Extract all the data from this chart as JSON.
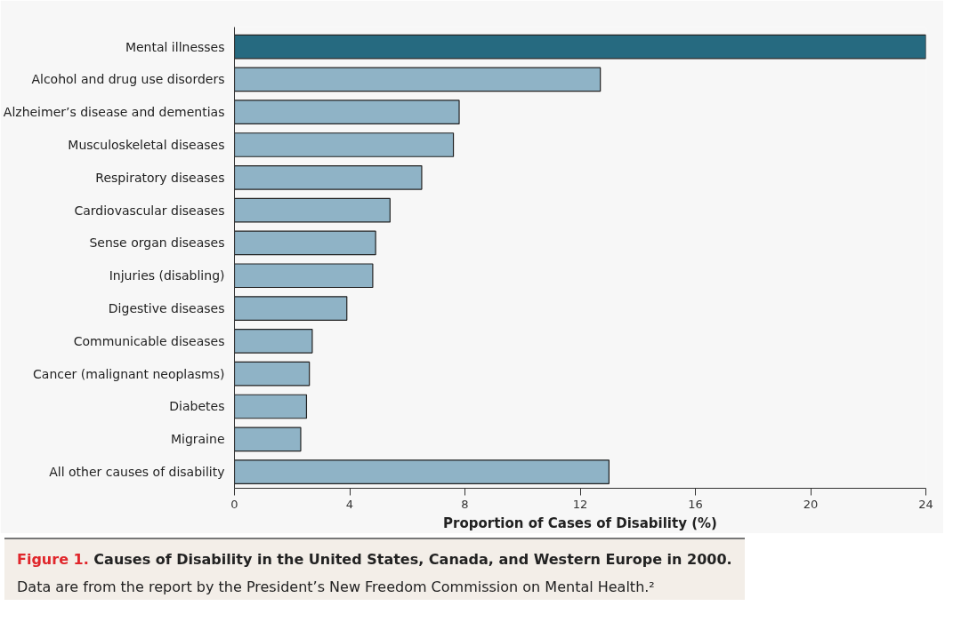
{
  "chart_data": {
    "type": "bar",
    "orientation": "horizontal",
    "title": "Figure 1. Causes of Disability in the United States, Canada, and Western Europe in 2000.",
    "subtitle": "Data are from the report by the President’s New Freedom Commission on Mental Health.²",
    "xlabel": "Proportion of Cases of Disability (%)",
    "categories": [
      "Mental illnesses",
      "Alcohol and drug use disorders",
      "Alzheimer’s disease and dementias",
      "Musculoskeletal diseases",
      "Respiratory diseases",
      "Cardiovascular diseases",
      "Sense organ diseases",
      "Injuries (disabling)",
      "Digestive diseases",
      "Communicable diseases",
      "Cancer (malignant neoplasms)",
      "Diabetes",
      "Migraine",
      "All other causes of disability"
    ],
    "values": [
      24,
      12.7,
      7.8,
      7.6,
      6.5,
      5.4,
      4.9,
      4.8,
      3.9,
      2.7,
      2.6,
      2.5,
      2.3,
      13.0
    ],
    "colors": [
      "#266a80",
      "#8fb3c6",
      "#8fb3c6",
      "#8fb3c6",
      "#8fb3c6",
      "#8fb3c6",
      "#8fb3c6",
      "#8fb3c6",
      "#8fb3c6",
      "#8fb3c6",
      "#8fb3c6",
      "#8fb3c6",
      "#8fb3c6",
      "#8fb3c6"
    ],
    "xlim": [
      0,
      24
    ],
    "xticks": [
      0,
      4,
      8,
      12,
      16,
      20,
      24
    ],
    "grid": false
  }
}
